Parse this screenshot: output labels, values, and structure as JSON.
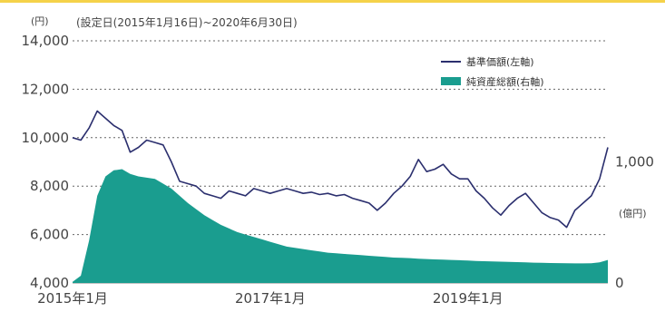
{
  "chart_data": {
    "type": "line+area",
    "subtitle": "(設定日(2015年1月16日)~2020年6月30日)",
    "left_unit": "(円)",
    "right_unit": "(億円)",
    "left_ylim": [
      4000,
      14000
    ],
    "left_ticks": [
      "4,000",
      "6,000",
      "8,000",
      "10,000",
      "12,000",
      "14,000"
    ],
    "left_tick_values": [
      4000,
      6000,
      8000,
      10000,
      12000,
      14000
    ],
    "right_ylim": [
      0,
      2000
    ],
    "right_ticks": [
      "0",
      "1,000"
    ],
    "right_tick_values": [
      0,
      1000
    ],
    "x_range": [
      "2015-01",
      "2020-06"
    ],
    "x_ticks": [
      "2015年1月",
      "2017年1月",
      "2019年1月"
    ],
    "x_tick_values": [
      "2015-01",
      "2017-01",
      "2019-01"
    ],
    "grid": "horizontal dotted",
    "legend_position": "top-right",
    "colors": {
      "nav": "#2b2f6e",
      "assets": "#1a9d8f",
      "grid": "#666666"
    },
    "series": [
      {
        "name": "基準価額(左軸)",
        "kind": "line",
        "axis": "left",
        "x": [
          "2015-01",
          "2015-02",
          "2015-03",
          "2015-04",
          "2015-05",
          "2015-06",
          "2015-07",
          "2015-08",
          "2015-09",
          "2015-10",
          "2015-11",
          "2015-12",
          "2016-01",
          "2016-02",
          "2016-03",
          "2016-04",
          "2016-05",
          "2016-06",
          "2016-07",
          "2016-08",
          "2016-09",
          "2016-10",
          "2016-11",
          "2016-12",
          "2017-01",
          "2017-02",
          "2017-03",
          "2017-04",
          "2017-05",
          "2017-06",
          "2017-07",
          "2017-08",
          "2017-09",
          "2017-10",
          "2017-11",
          "2017-12",
          "2018-01",
          "2018-02",
          "2018-03",
          "2018-04",
          "2018-05",
          "2018-06",
          "2018-07",
          "2018-08",
          "2018-09",
          "2018-10",
          "2018-11",
          "2018-12",
          "2019-01",
          "2019-02",
          "2019-03",
          "2019-04",
          "2019-05",
          "2019-06",
          "2019-07",
          "2019-08",
          "2019-09",
          "2019-10",
          "2019-11",
          "2019-12",
          "2020-01",
          "2020-02",
          "2020-03",
          "2020-04",
          "2020-05",
          "2020-06"
        ],
        "y": [
          10000,
          9900,
          10400,
          11100,
          10800,
          10500,
          10300,
          9400,
          9600,
          9900,
          9800,
          9700,
          9000,
          8200,
          8100,
          8000,
          7700,
          7600,
          7500,
          7800,
          7700,
          7600,
          7900,
          7800,
          7700,
          7800,
          7900,
          7800,
          7700,
          7750,
          7650,
          7700,
          7600,
          7650,
          7500,
          7400,
          7300,
          7000,
          7300,
          7700,
          8000,
          8400,
          9100,
          8600,
          8700,
          8900,
          8500,
          8300,
          8300,
          7800,
          7500,
          7100,
          6800,
          7200,
          7500,
          7700,
          7300,
          6900,
          6700,
          6600,
          6300,
          7000,
          7300,
          7600,
          8300,
          9600
        ]
      },
      {
        "name": "純資産総額(右軸)",
        "kind": "area",
        "axis": "right",
        "x": [
          "2015-01",
          "2015-02",
          "2015-03",
          "2015-04",
          "2015-05",
          "2015-06",
          "2015-07",
          "2015-08",
          "2015-09",
          "2015-10",
          "2015-11",
          "2015-12",
          "2016-01",
          "2016-02",
          "2016-03",
          "2016-04",
          "2016-05",
          "2016-06",
          "2016-07",
          "2016-08",
          "2016-09",
          "2016-10",
          "2016-11",
          "2016-12",
          "2017-01",
          "2017-02",
          "2017-03",
          "2017-04",
          "2017-05",
          "2017-06",
          "2017-07",
          "2017-08",
          "2017-09",
          "2017-10",
          "2017-11",
          "2017-12",
          "2018-01",
          "2018-02",
          "2018-03",
          "2018-04",
          "2018-05",
          "2018-06",
          "2018-07",
          "2018-08",
          "2018-09",
          "2018-10",
          "2018-11",
          "2018-12",
          "2019-01",
          "2019-02",
          "2019-03",
          "2019-04",
          "2019-05",
          "2019-06",
          "2019-07",
          "2019-08",
          "2019-09",
          "2019-10",
          "2019-11",
          "2019-12",
          "2020-01",
          "2020-02",
          "2020-03",
          "2020-04",
          "2020-05",
          "2020-06"
        ],
        "y": [
          10,
          60,
          350,
          720,
          880,
          930,
          940,
          900,
          880,
          870,
          860,
          820,
          780,
          720,
          660,
          610,
          560,
          520,
          480,
          450,
          420,
          400,
          380,
          360,
          340,
          320,
          300,
          290,
          280,
          270,
          260,
          250,
          245,
          240,
          235,
          230,
          225,
          220,
          215,
          210,
          208,
          205,
          200,
          198,
          195,
          193,
          190,
          188,
          185,
          182,
          180,
          178,
          176,
          174,
          172,
          170,
          168,
          166,
          165,
          164,
          163,
          162,
          162,
          163,
          170,
          190
        ]
      }
    ]
  }
}
